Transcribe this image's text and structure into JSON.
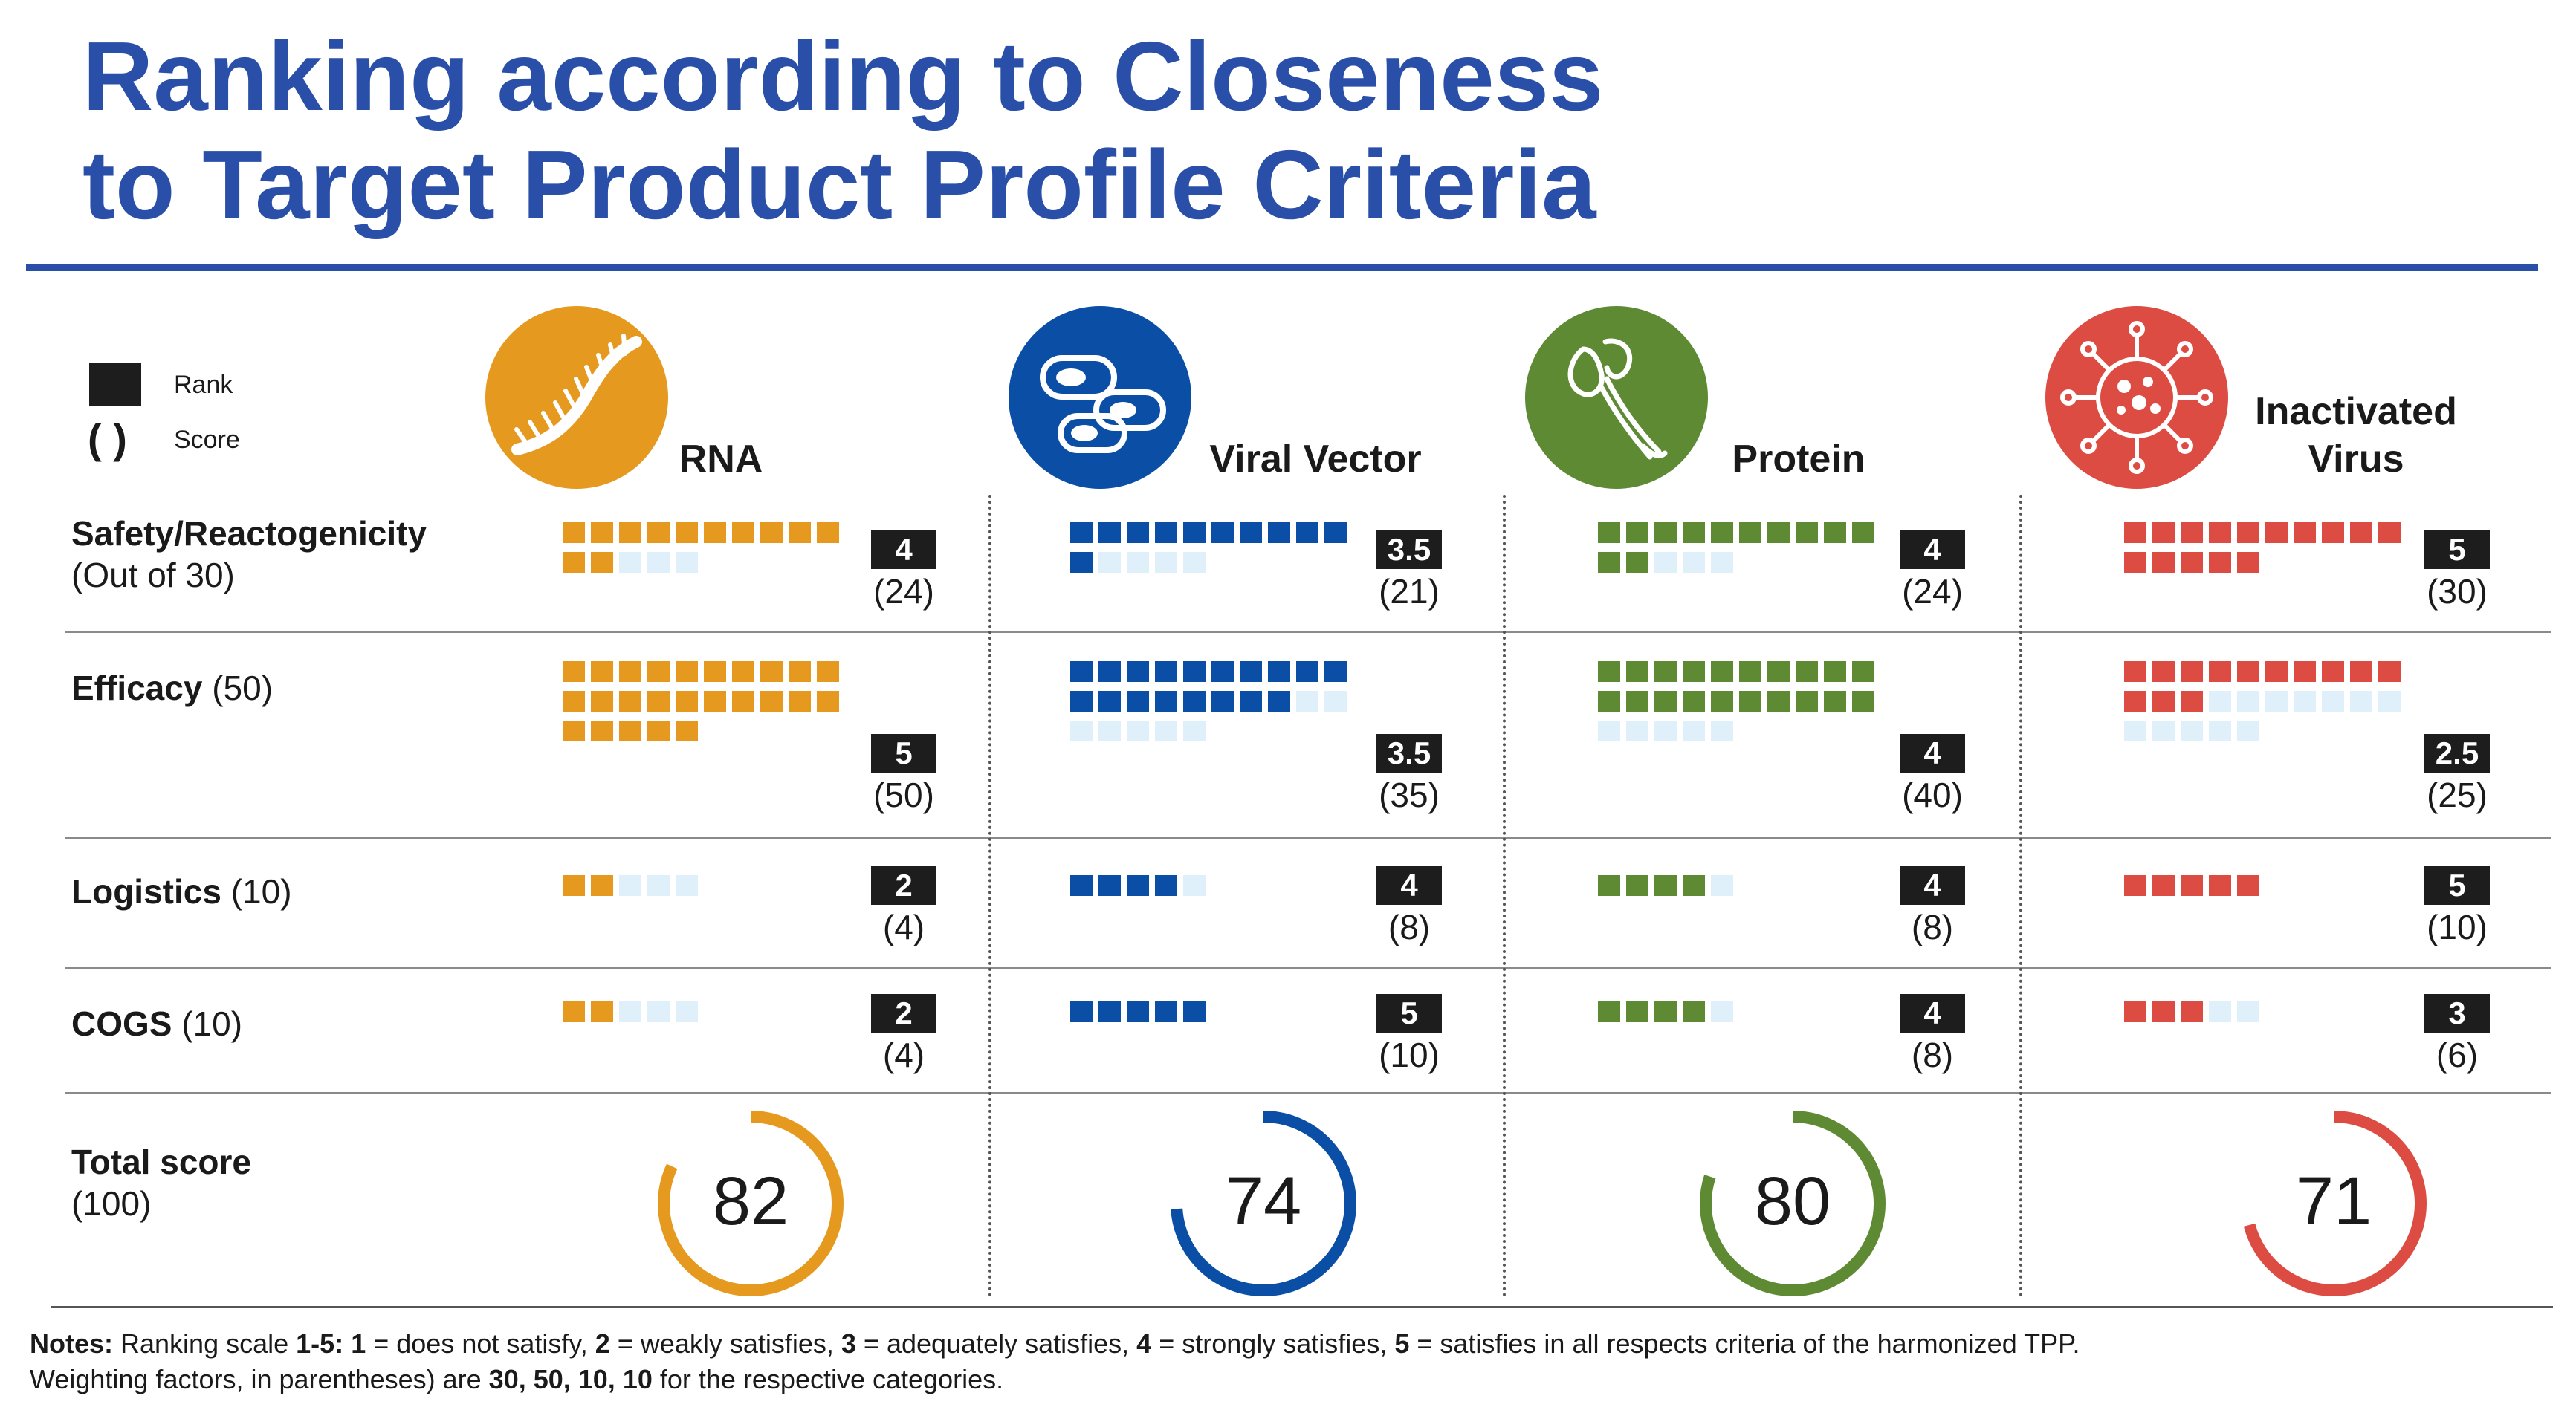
{
  "title": {
    "line1": "Ranking according to Closeness",
    "line2": "to Target Product Profile Criteria"
  },
  "legend": {
    "rank_label": "Rank",
    "score_symbol": "( )",
    "score_label": "Score"
  },
  "colors": {
    "title": "#2a4fa8",
    "empty_cell": "#dff0fa",
    "RNA": "#e59a1f",
    "Viral Vector": "#0a4fa5",
    "Protein": "#5e8a34",
    "Inactivated Virus": "#dc4c43"
  },
  "icons": [
    "rna-icon",
    "viral-vector-icon",
    "protein-icon",
    "virus-icon"
  ],
  "chart_data": {
    "type": "table",
    "title": "Ranking according to Closeness to Target Product Profile Criteria",
    "columns": [
      "RNA",
      "Viral Vector",
      "Protein",
      "Inactivated Virus"
    ],
    "rows": [
      {
        "name": "Safety/Reactogenicity",
        "weight_text": "(Out of 30)",
        "max": 30,
        "ranks": [
          "4",
          "3.5",
          "4",
          "5"
        ],
        "scores": [
          24,
          21,
          24,
          30
        ],
        "score_labels": [
          "(24)",
          "(21)",
          "(24)",
          "(30)"
        ]
      },
      {
        "name": "Efficacy",
        "weight_text": "(50)",
        "max": 50,
        "ranks": [
          "5",
          "3.5",
          "4",
          "2.5"
        ],
        "scores": [
          50,
          35,
          40,
          25
        ],
        "score_labels": [
          "(50)",
          "(35)",
          "(40)",
          "(25)"
        ]
      },
      {
        "name": "Logistics",
        "weight_text": "(10)",
        "max": 10,
        "ranks": [
          "2",
          "4",
          "4",
          "5"
        ],
        "scores": [
          4,
          8,
          8,
          10
        ],
        "score_labels": [
          "(4)",
          "(8)",
          "(8)",
          "(10)"
        ]
      },
      {
        "name": "COGS",
        "weight_text": "(10)",
        "max": 10,
        "ranks": [
          "2",
          "5",
          "4",
          "3"
        ],
        "scores": [
          4,
          10,
          8,
          6
        ],
        "score_labels": [
          "(4)",
          "(10)",
          "(8)",
          "(6)"
        ]
      }
    ],
    "total": {
      "name": "Total score",
      "weight_text": "(100)",
      "max": 100,
      "values": [
        82,
        74,
        80,
        71
      ],
      "labels": [
        "82",
        "74",
        "80",
        "71"
      ]
    }
  },
  "notes": {
    "line1_prefix": "Notes:",
    "line1": [
      " Ranking scale ",
      "1-5:",
      " ",
      "1",
      " = does not satisfy, ",
      "2",
      " = weakly satisfies, ",
      "3",
      " = adequately satisfies, ",
      "4",
      " = strongly satisfies, ",
      "5",
      " = satisfies in all respects criteria of the harmonized TPP."
    ],
    "line2": [
      "Weighting factors, in parentheses) are ",
      "30, 50, 10, 10",
      " for the respective categories."
    ]
  }
}
